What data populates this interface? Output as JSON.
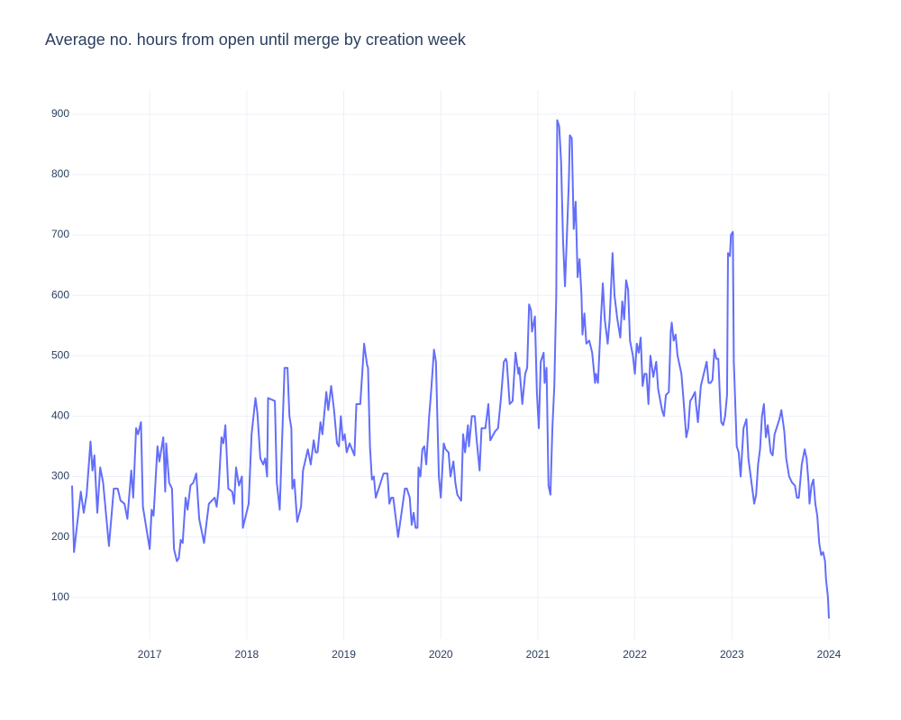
{
  "chart_data": {
    "type": "line",
    "title": "Average no. hours from open until merge by creation week",
    "x": [
      2016.2,
      2016.22,
      2016.29,
      2016.32,
      2016.35,
      2016.39,
      2016.41,
      2016.43,
      2016.46,
      2016.49,
      2016.52,
      2016.58,
      2016.63,
      2016.67,
      2016.7,
      2016.74,
      2016.77,
      2016.81,
      2016.83,
      2016.86,
      2016.88,
      2016.91,
      2016.93,
      2017.0,
      2017.02,
      2017.04,
      2017.08,
      2017.1,
      2017.14,
      2017.16,
      2017.17,
      2017.2,
      2017.23,
      2017.25,
      2017.28,
      2017.3,
      2017.32,
      2017.34,
      2017.37,
      2017.39,
      2017.42,
      2017.45,
      2017.48,
      2017.51,
      2017.56,
      2017.61,
      2017.67,
      2017.69,
      2017.71,
      2017.74,
      2017.76,
      2017.78,
      2017.81,
      2017.85,
      2017.87,
      2017.89,
      2017.92,
      2017.95,
      2017.96,
      2018.02,
      2018.05,
      2018.09,
      2018.11,
      2018.14,
      2018.17,
      2018.19,
      2018.21,
      2018.22,
      2018.29,
      2018.31,
      2018.34,
      2018.36,
      2018.39,
      2018.42,
      2018.44,
      2018.46,
      2018.47,
      2018.49,
      2018.52,
      2018.56,
      2018.58,
      2018.63,
      2018.66,
      2018.69,
      2018.71,
      2018.73,
      2018.76,
      2018.78,
      2018.82,
      2018.84,
      2018.87,
      2018.9,
      2018.93,
      2018.95,
      2018.97,
      2018.99,
      2019.01,
      2019.03,
      2019.06,
      2019.11,
      2019.13,
      2019.17,
      2019.21,
      2019.24,
      2019.25,
      2019.27,
      2019.29,
      2019.31,
      2019.33,
      2019.38,
      2019.41,
      2019.45,
      2019.47,
      2019.49,
      2019.51,
      2019.56,
      2019.6,
      2019.63,
      2019.65,
      2019.68,
      2019.7,
      2019.72,
      2019.74,
      2019.76,
      2019.77,
      2019.79,
      2019.81,
      2019.83,
      2019.85,
      2019.88,
      2019.9,
      2019.93,
      2019.95,
      2019.98,
      2020.0,
      2020.03,
      2020.05,
      2020.08,
      2020.1,
      2020.13,
      2020.15,
      2020.17,
      2020.21,
      2020.23,
      2020.25,
      2020.28,
      2020.29,
      2020.32,
      2020.35,
      2020.37,
      2020.4,
      2020.42,
      2020.46,
      2020.49,
      2020.51,
      2020.56,
      2020.59,
      2020.62,
      2020.65,
      2020.67,
      2020.68,
      2020.71,
      2020.74,
      2020.77,
      2020.8,
      2020.81,
      2020.84,
      2020.87,
      2020.89,
      2020.91,
      2020.93,
      2020.94,
      2020.97,
      2020.99,
      2021.01,
      2021.03,
      2021.06,
      2021.07,
      2021.09,
      2021.11,
      2021.13,
      2021.15,
      2021.17,
      2021.19,
      2021.2,
      2021.22,
      2021.24,
      2021.26,
      2021.28,
      2021.3,
      2021.32,
      2021.33,
      2021.35,
      2021.37,
      2021.39,
      2021.41,
      2021.43,
      2021.45,
      2021.46,
      2021.48,
      2021.5,
      2021.53,
      2021.56,
      2021.59,
      2021.6,
      2021.62,
      2021.65,
      2021.67,
      2021.69,
      2021.72,
      2021.74,
      2021.77,
      2021.79,
      2021.82,
      2021.85,
      2021.87,
      2021.89,
      2021.91,
      2021.93,
      2021.95,
      2021.98,
      2022.0,
      2022.02,
      2022.04,
      2022.06,
      2022.08,
      2022.1,
      2022.12,
      2022.14,
      2022.16,
      2022.19,
      2022.22,
      2022.24,
      2022.28,
      2022.3,
      2022.32,
      2022.35,
      2022.37,
      2022.38,
      2022.4,
      2022.42,
      2022.44,
      2022.48,
      2022.5,
      2022.53,
      2022.55,
      2022.57,
      2022.59,
      2022.62,
      2022.63,
      2022.65,
      2022.68,
      2022.71,
      2022.74,
      2022.76,
      2022.78,
      2022.8,
      2022.82,
      2022.84,
      2022.86,
      2022.88,
      2022.89,
      2022.91,
      2022.93,
      2022.95,
      2022.96,
      2022.98,
      2022.99,
      2023.01,
      2023.02,
      2023.05,
      2023.07,
      2023.09,
      2023.12,
      2023.15,
      2023.17,
      2023.21,
      2023.23,
      2023.25,
      2023.27,
      2023.29,
      2023.31,
      2023.33,
      2023.35,
      2023.37,
      2023.4,
      2023.42,
      2023.44,
      2023.49,
      2023.51,
      2023.54,
      2023.56,
      2023.59,
      2023.62,
      2023.65,
      2023.67,
      2023.69,
      2023.72,
      2023.75,
      2023.77,
      2023.79,
      2023.8,
      2023.82,
      2023.84,
      2023.86,
      2023.88,
      2023.9,
      2023.92,
      2023.94,
      2023.96,
      2023.97,
      2023.99,
      2024.0
    ],
    "series": [
      {
        "color": "#636efa",
        "values": [
          285,
          175,
          275,
          240,
          270,
          358,
          310,
          335,
          240,
          315,
          290,
          185,
          280,
          280,
          260,
          255,
          230,
          310,
          265,
          380,
          370,
          390,
          250,
          180,
          245,
          235,
          350,
          325,
          365,
          275,
          355,
          290,
          280,
          180,
          160,
          165,
          195,
          190,
          265,
          245,
          285,
          290,
          305,
          230,
          190,
          255,
          265,
          250,
          280,
          365,
          355,
          385,
          280,
          275,
          255,
          315,
          285,
          300,
          215,
          255,
          370,
          430,
          405,
          330,
          320,
          330,
          300,
          430,
          425,
          290,
          245,
          340,
          480,
          480,
          400,
          380,
          280,
          295,
          225,
          250,
          310,
          345,
          320,
          360,
          340,
          340,
          390,
          370,
          440,
          410,
          450,
          410,
          355,
          350,
          400,
          360,
          370,
          340,
          355,
          335,
          420,
          420,
          520,
          485,
          480,
          350,
          295,
          300,
          265,
          290,
          305,
          305,
          255,
          265,
          265,
          200,
          245,
          280,
          280,
          265,
          220,
          240,
          215,
          215,
          315,
          300,
          345,
          350,
          320,
          400,
          440,
          510,
          490,
          300,
          265,
          355,
          345,
          340,
          300,
          325,
          290,
          270,
          260,
          370,
          340,
          385,
          350,
          400,
          400,
          360,
          310,
          380,
          380,
          420,
          360,
          375,
          380,
          430,
          490,
          495,
          490,
          420,
          425,
          505,
          470,
          480,
          420,
          470,
          480,
          585,
          575,
          540,
          565,
          440,
          380,
          490,
          505,
          455,
          480,
          285,
          270,
          380,
          450,
          600,
          890,
          880,
          820,
          690,
          615,
          700,
          790,
          865,
          860,
          710,
          755,
          630,
          660,
          600,
          535,
          570,
          520,
          525,
          505,
          455,
          470,
          455,
          560,
          620,
          560,
          520,
          560,
          670,
          600,
          560,
          530,
          590,
          560,
          625,
          610,
          525,
          500,
          470,
          520,
          505,
          530,
          450,
          470,
          470,
          420,
          500,
          465,
          490,
          445,
          410,
          400,
          435,
          440,
          540,
          555,
          525,
          535,
          500,
          470,
          430,
          365,
          380,
          425,
          430,
          440,
          420,
          390,
          450,
          470,
          490,
          455,
          455,
          460,
          510,
          495,
          495,
          420,
          390,
          385,
          400,
          435,
          670,
          665,
          700,
          705,
          490,
          350,
          340,
          300,
          380,
          395,
          330,
          280,
          255,
          270,
          320,
          345,
          400,
          420,
          365,
          385,
          340,
          335,
          370,
          395,
          410,
          375,
          330,
          300,
          290,
          285,
          265,
          265,
          320,
          345,
          330,
          290,
          255,
          285,
          295,
          255,
          235,
          190,
          170,
          175,
          160,
          130,
          100,
          65
        ]
      }
    ],
    "xlim": [
      2016.2,
      2024.0
    ],
    "xticks": [
      2017,
      2018,
      2019,
      2020,
      2021,
      2022,
      2023,
      2024
    ],
    "ylim": [
      31,
      940
    ],
    "yticks": [
      100,
      200,
      300,
      400,
      500,
      600,
      700,
      800,
      900
    ],
    "grid": true
  }
}
